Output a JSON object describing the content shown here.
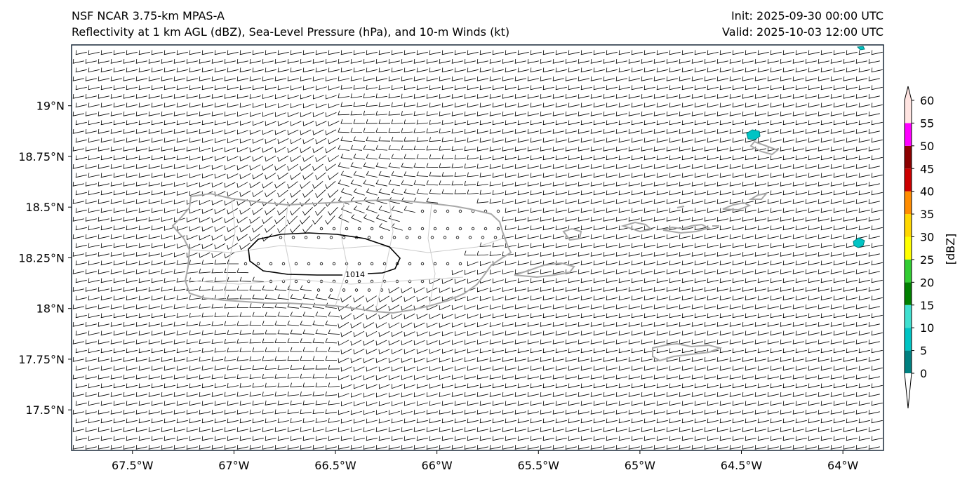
{
  "titles": {
    "left_line1": "NSF NCAR 3.75-km MPAS-A",
    "left_line2": "Reflectivity at 1 km AGL (dBZ), Sea-Level Pressure (hPa), and 10-m Winds (kt)",
    "right_line1": "Init: 2025-09-30 00:00 UTC",
    "right_line2": "Valid: 2025-10-03 12:00 UTC"
  },
  "map": {
    "lon_range": [
      -67.8,
      -63.8
    ],
    "lat_range": [
      17.3,
      19.3
    ],
    "lon_ticks": [
      {
        "value": -67.5,
        "label": "67.5°W"
      },
      {
        "value": -67.0,
        "label": "67°W"
      },
      {
        "value": -66.5,
        "label": "66.5°W"
      },
      {
        "value": -66.0,
        "label": "66°W"
      },
      {
        "value": -65.5,
        "label": "65.5°W"
      },
      {
        "value": -65.0,
        "label": "65°W"
      },
      {
        "value": -64.5,
        "label": "64.5°W"
      },
      {
        "value": -64.0,
        "label": "64°W"
      }
    ],
    "lat_ticks": [
      {
        "value": 19.0,
        "label": "19°N"
      },
      {
        "value": 18.75,
        "label": "18.75°N"
      },
      {
        "value": 18.5,
        "label": "18.5°N"
      },
      {
        "value": 18.25,
        "label": "18.25°N"
      },
      {
        "value": 18.0,
        "label": "18°N"
      },
      {
        "value": 17.75,
        "label": "17.75°N"
      },
      {
        "value": 17.5,
        "label": "17.5°N"
      }
    ],
    "isobar_label": "1014",
    "isobar_value_hpa": 1014,
    "coast_color": "#a8a8a8",
    "border_color": "#cccccc",
    "isobar_color": "#000000",
    "barb_color": "#000000"
  },
  "colorbar": {
    "label": "[dBZ]",
    "ticks": [
      "0",
      "5",
      "10",
      "15",
      "20",
      "25",
      "30",
      "35",
      "40",
      "45",
      "50",
      "55",
      "60"
    ],
    "bins": [
      {
        "from": 0,
        "to": 5,
        "color": "#008080"
      },
      {
        "from": 5,
        "to": 10,
        "color": "#00c4c4"
      },
      {
        "from": 10,
        "to": 15,
        "color": "#40e0d0"
      },
      {
        "from": 15,
        "to": 20,
        "color": "#008000"
      },
      {
        "from": 20,
        "to": 25,
        "color": "#32cd32"
      },
      {
        "from": 25,
        "to": 30,
        "color": "#ffff00"
      },
      {
        "from": 30,
        "to": 35,
        "color": "#ffd700"
      },
      {
        "from": 35,
        "to": 40,
        "color": "#ff8c00"
      },
      {
        "from": 40,
        "to": 45,
        "color": "#cc0000"
      },
      {
        "from": 45,
        "to": 50,
        "color": "#8b0000"
      },
      {
        "from": 50,
        "to": 55,
        "color": "#ff00ff"
      },
      {
        "from": 55,
        "to": 60,
        "color": "#ffe4e1"
      }
    ],
    "under_color": "#ffffff",
    "over_color": "#ffe4e1"
  }
}
